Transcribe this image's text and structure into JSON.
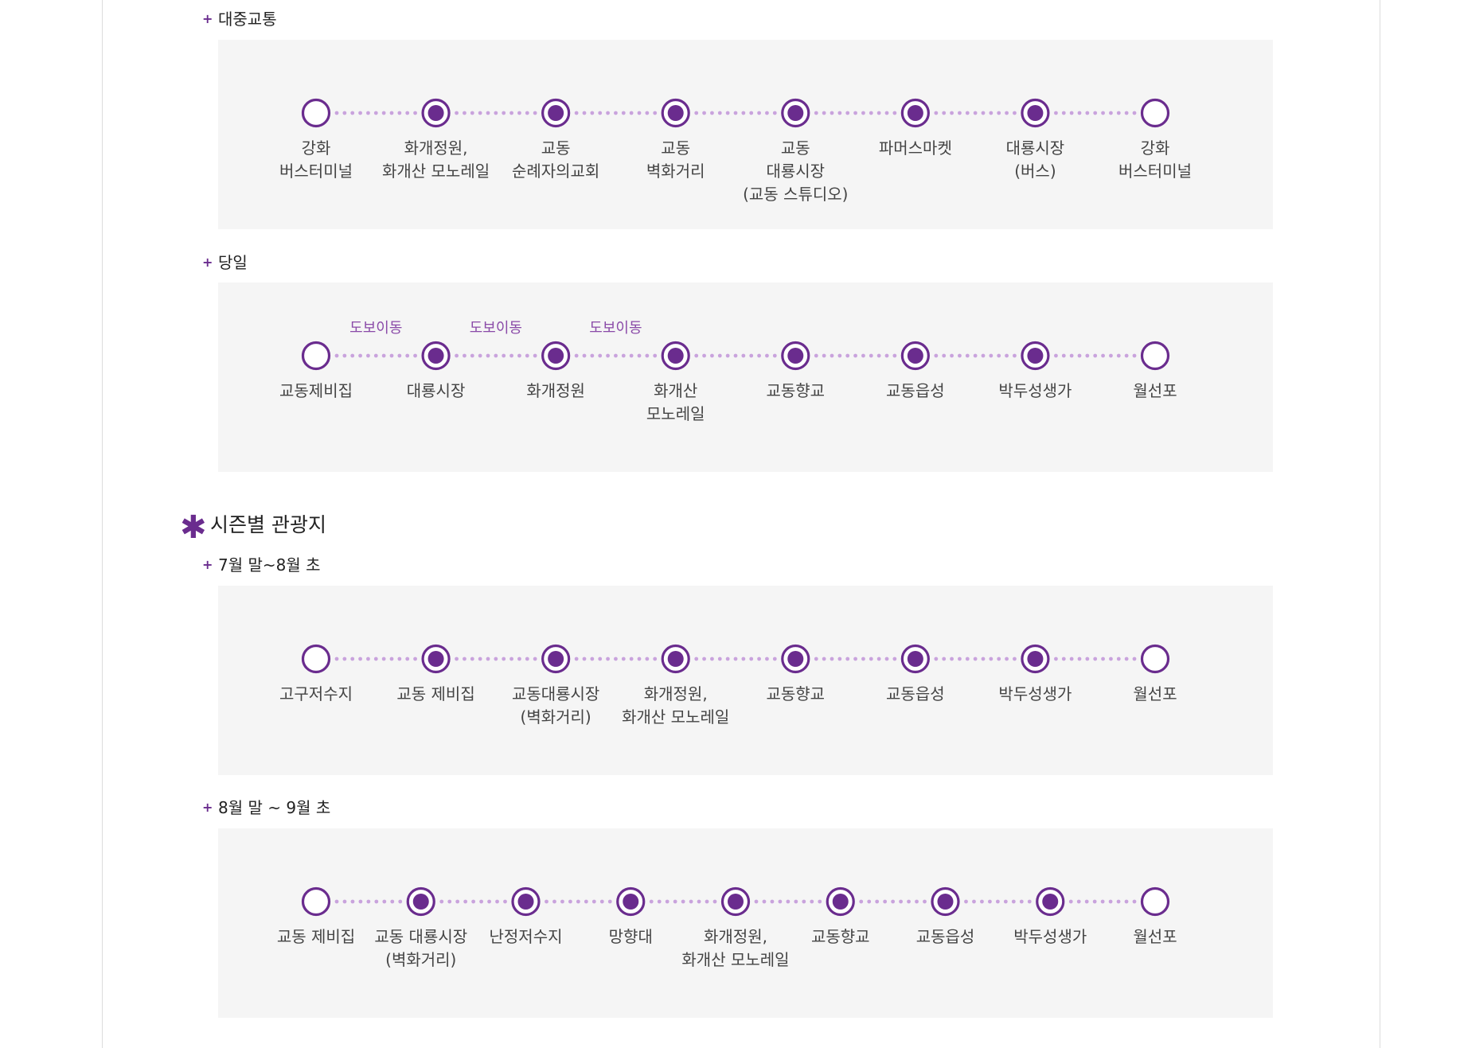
{
  "colors": {
    "accent": "#6a2c8e",
    "dots": "#c9a3dd",
    "box_bg": "#f5f5f5"
  },
  "icons": {
    "sub_bullet": "plus-icon",
    "section_bullet": "asterisk-icon"
  },
  "sections": {
    "public_transport": {
      "bullet": "+",
      "title": "대중교통",
      "stops": [
        {
          "label": "강화\n버스터미널",
          "type": "endpoint"
        },
        {
          "label": "화개정원,\n화개산 모노레일",
          "type": "stop"
        },
        {
          "label": "교동\n순례자의교회",
          "type": "stop"
        },
        {
          "label": "교동\n벽화거리",
          "type": "stop"
        },
        {
          "label": "교동\n대룡시장\n(교동 스튜디오)",
          "type": "stop"
        },
        {
          "label": "파머스마켓",
          "type": "stop"
        },
        {
          "label": "대룡시장\n(버스)",
          "type": "stop"
        },
        {
          "label": "강화\n버스터미널",
          "type": "endpoint"
        }
      ]
    },
    "day_trip": {
      "bullet": "+",
      "title": "당일",
      "walk_labels": [
        "도보이동",
        "도보이동",
        "도보이동"
      ],
      "stops": [
        {
          "label": "교동제비집",
          "type": "endpoint"
        },
        {
          "label": "대룡시장",
          "type": "stop"
        },
        {
          "label": "화개정원",
          "type": "stop"
        },
        {
          "label": "화개산\n모노레일",
          "type": "stop"
        },
        {
          "label": "교동향교",
          "type": "stop"
        },
        {
          "label": "교동읍성",
          "type": "stop"
        },
        {
          "label": "박두성생가",
          "type": "stop"
        },
        {
          "label": "월선포",
          "type": "endpoint"
        }
      ]
    },
    "seasonal_heading": {
      "bullet": "✱",
      "title": "시즌별 관광지"
    },
    "late_july": {
      "bullet": "+",
      "title": "7월 말~8월 초",
      "stops": [
        {
          "label": "고구저수지",
          "type": "endpoint"
        },
        {
          "label": "교동 제비집",
          "type": "stop"
        },
        {
          "label": "교동대룡시장\n(벽화거리)",
          "type": "stop"
        },
        {
          "label": "화개정원,\n화개산 모노레일",
          "type": "stop"
        },
        {
          "label": "교동향교",
          "type": "stop"
        },
        {
          "label": "교동읍성",
          "type": "stop"
        },
        {
          "label": "박두성생가",
          "type": "stop"
        },
        {
          "label": "월선포",
          "type": "endpoint"
        }
      ]
    },
    "late_august": {
      "bullet": "+",
      "title": "8월 말 ~ 9월 초",
      "stops": [
        {
          "label": "교동 제비집",
          "type": "endpoint"
        },
        {
          "label": "교동 대룡시장\n(벽화거리)",
          "type": "stop"
        },
        {
          "label": "난정저수지",
          "type": "stop"
        },
        {
          "label": "망향대",
          "type": "stop"
        },
        {
          "label": "화개정원,\n화개산 모노레일",
          "type": "stop"
        },
        {
          "label": "교동향교",
          "type": "stop"
        },
        {
          "label": "교동읍성",
          "type": "stop"
        },
        {
          "label": "박두성생가",
          "type": "stop"
        },
        {
          "label": "월선포",
          "type": "endpoint"
        }
      ]
    }
  }
}
